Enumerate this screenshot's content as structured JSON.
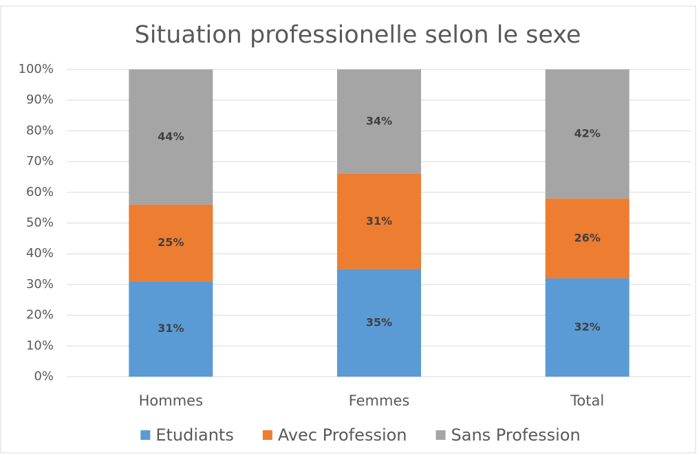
{
  "chart_data": {
    "type": "stacked_bar",
    "title": "Situation professionelle selon le sexe",
    "categories": [
      "Hommes",
      "Femmes",
      "Total"
    ],
    "series": [
      {
        "name": "Etudiants",
        "color": "#5b9bd5",
        "values": [
          31,
          35,
          32
        ],
        "value_labels": [
          "31%",
          "35%",
          "32%"
        ]
      },
      {
        "name": "Avec Profession",
        "color": "#ed7d31",
        "values": [
          25,
          31,
          26
        ],
        "value_labels": [
          "25%",
          "31%",
          "26%"
        ]
      },
      {
        "name": "Sans Profession",
        "color": "#a5a5a5",
        "values": [
          44,
          34,
          42
        ],
        "value_labels": [
          "44%",
          "34%",
          "42%"
        ]
      }
    ],
    "ylim": [
      0,
      100
    ],
    "yticks": [
      {
        "value": 0,
        "label": "0%"
      },
      {
        "value": 10,
        "label": "10%"
      },
      {
        "value": 20,
        "label": "20%"
      },
      {
        "value": 30,
        "label": "30%"
      },
      {
        "value": 40,
        "label": "40%"
      },
      {
        "value": 50,
        "label": "50%"
      },
      {
        "value": 60,
        "label": "60%"
      },
      {
        "value": 70,
        "label": "70%"
      },
      {
        "value": 80,
        "label": "80%"
      },
      {
        "value": 90,
        "label": "90%"
      },
      {
        "value": 100,
        "label": "100%"
      }
    ],
    "grid": true,
    "legend": "bottom"
  }
}
